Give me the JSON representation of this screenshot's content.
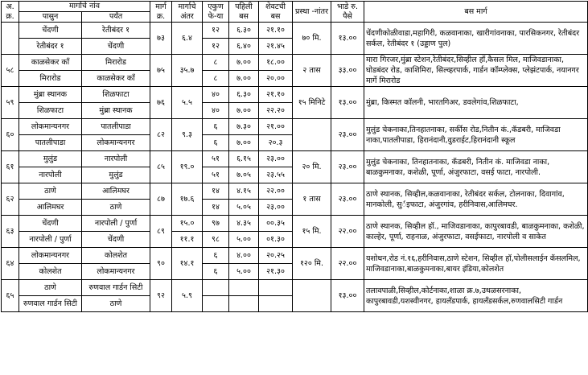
{
  "header": {
    "serial": "अ. क्र.",
    "route_name": "मार्गाचे नांव",
    "from": "पासुन",
    "to": "पर्यंत",
    "route_no": "मार्ग क्र.",
    "distance": "मार्गाचे अंतर",
    "trips": "एकुण फे-या",
    "first_bus": "पहिली बस",
    "last_bus": "शेवटची बस",
    "interval": "प्रस्था -नांतर",
    "fare": "भाडे रु. पैसे",
    "path": "बस मार्ग"
  },
  "routes": [
    {
      "rows": [
        {
          "from": "चेंदणी",
          "to": "रेतीबंदर १",
          "trips": "१२",
          "first": "६.३०",
          "last": "२१.१०"
        },
        {
          "from": "रेतीबंदर १",
          "to": "चेंदणी",
          "trips": "१२",
          "first": "६.४०",
          "last": "२१.४५"
        }
      ],
      "route_no": "७३",
      "distance": "६.४",
      "interval": "७० मि.",
      "fare": "१३.००",
      "path": "चेंदणीकोळीवाडा,महागिरी, कळवानाका, खारीगांवनाका, पारसिकनगर, रेतीबंदर सर्कल, रेतीबंदर १ (उड्डाण पुल)"
    },
    {
      "serial": "५८",
      "rows": [
        {
          "from": "काळसेकर कॉं",
          "to": "मिरारोड",
          "trips": "८",
          "first": "७.००",
          "last": "१८.००"
        },
        {
          "from": "मिरारोड",
          "to": "काळसेकर कॉं",
          "trips": "८",
          "first": "७.००",
          "last": "२०.००"
        }
      ],
      "route_no": "७५",
      "distance": "३५.७",
      "interval": "२ तास",
      "fare": "३३.००",
      "path": "मारा गिरजर,मुंब्रा स्टेशन,रेतीबंदर,सिव्हील हॉ,कैसल मिल, माजिवडानाका, घोडबंदर रोड, काशिमिरा, सिल्व्हरपार्क, गार्डन कॉम्प्लेक्स, प्लेझंटपार्क, नयानगर मार्गे मिरारोड"
    },
    {
      "serial": "५९",
      "rows": [
        {
          "from": "मुंब्रा स्थानक",
          "to": "शिळफाटा",
          "trips": "४०",
          "first": "६.३०",
          "last": "२१.१०"
        },
        {
          "from": "शिळफाटा",
          "to": "मुंब्रा स्थानक",
          "trips": "४०",
          "first": "७.००",
          "last": "२२.२०"
        }
      ],
      "route_no": "७६",
      "distance": "५.५",
      "interval": "१५ मिनिटे",
      "fare": "१३.००",
      "path": "मुंब्रा, किस्मत कॉलनी, भारतगिअर, डवलेगांव,शिळफाटा,"
    },
    {
      "serial": "६०",
      "rows": [
        {
          "from": "लोकमान्यनगर",
          "to": "पातलीपाडा",
          "trips": "६",
          "first": "७.३०",
          "last": "२१.००"
        },
        {
          "from": "पातलीपाडा",
          "to": "लोकमान्यनगर",
          "trips": "६",
          "first": "७.००",
          "last": "२०.३"
        }
      ],
      "route_no": "८२",
      "distance": "९.३",
      "fare": "२३.००",
      "path": "मुलुंड चेकनाका,तिनहातनाका, सर्कीस रोड,नितीन कं.,कॅडबरी, माजिवडा नाका,पातलीपाडा, हिरानंदानी,वुडराईट,हिरानंदानी स्कूल"
    },
    {
      "serial": "६१",
      "rows": [
        {
          "from": "मुलुंड",
          "to": "नारपोली",
          "trips": "५१",
          "first": "६.१५",
          "last": "२३.००"
        },
        {
          "from": "नारपोली",
          "to": "मुलुंड",
          "trips": "५१",
          "first": "७.०५",
          "last": "२३.५५"
        }
      ],
      "route_no": "८५",
      "distance": "१९.०",
      "interval": "२० मि.",
      "fare": "२३.००",
      "path": "मुलुंड चेकनाका, तिनहातनाका, कॅडबरी, नितीन कं. माजिवडा नाका, बाळकुमनाका, कशेळी, पूर्णा, अंजुरफाटा, वसई फाटा, नारपोली."
    },
    {
      "serial": "६२",
      "rows": [
        {
          "from": "ठाणे",
          "to": "आलिमघर",
          "trips": "१४",
          "first": "४.१५",
          "last": "२२.००"
        },
        {
          "from": "आलिमघर",
          "to": "ठाणे",
          "trips": "१४",
          "first": "५.०५",
          "last": "२३.००"
        }
      ],
      "route_no": "८७",
      "distance": "१७.६",
      "interval": "१ तास",
      "fare": "२३.००",
      "path": "ठाणे स्थानक, सिव्हील,कळवानाका, रेतीबंदर सर्कल, टोलनाका, दिवागांव, मानकोली, सुर्इफाटा, अंजुरगांव, हरीनिवास,आलिमघर."
    },
    {
      "serial": "६३",
      "rows": [
        {
          "from": "चेंदणी",
          "to": "नारपोली / पुर्णा",
          "distance": "१५.०",
          "trips": "९७",
          "first": "४.३५",
          "last": "००.३५"
        },
        {
          "from": "नारपोली / पुर्णा",
          "to": "चेंदणी",
          "distance": "११.१",
          "trips": "९८",
          "first": "५.००",
          "last": "०१.३०"
        }
      ],
      "route_no": "८९",
      "interval": "१५ मि.",
      "fare": "२२.००",
      "path": "ठाणे स्थानक, सिव्हील हॉ., माजिवडानाका, कापुरबावडी, बाळकुमनाका, कशेळी, काल्हेर, पूर्णा, राहनाळ, अंजुरफाटा, वसईफाटा, नारपोली व साकेत"
    },
    {
      "serial": "६४",
      "rows": [
        {
          "from": "लोकमान्यनगर",
          "to": "कोलशेत",
          "trips": "६",
          "first": "४.००",
          "last": "२०.२५"
        },
        {
          "from": "कोलशेत",
          "to": "लोकमान्यनगर",
          "trips": "६",
          "first": "५.००",
          "last": "२१.३०"
        }
      ],
      "route_no": "९०",
      "distance": "१४.१",
      "interval": "१२० मि.",
      "fare": "२२.००",
      "path": "यशोधन,रोड नं.१६,हरीनिवास,ठाणे स्टेशन, सिव्हील हॉ,पोलीसलाईन कॅसलमिल, माजिवडानाका,बाळकुमनाका,बायर इंडिया,कोलशेत"
    },
    {
      "serial": "६५",
      "rows": [
        {
          "from": "ठाणे",
          "to": "रुणवाल गार्डन सिटी"
        },
        {
          "from": "रुणवाल गार्डन सिटी",
          "to": "ठाणे"
        }
      ],
      "route_no": "९२",
      "distance": "५.९",
      "fare": "१३.००",
      "path": "तलावपाळी,सिव्हील,कोर्टनाका,शाळा क्र.७,उथळसरनाका, कापुरबावडी,यशस्वीनगर, हायलॅंडपार्क, हायलॅंडसर्कल,रुणवालसिटी गार्डन"
    }
  ]
}
